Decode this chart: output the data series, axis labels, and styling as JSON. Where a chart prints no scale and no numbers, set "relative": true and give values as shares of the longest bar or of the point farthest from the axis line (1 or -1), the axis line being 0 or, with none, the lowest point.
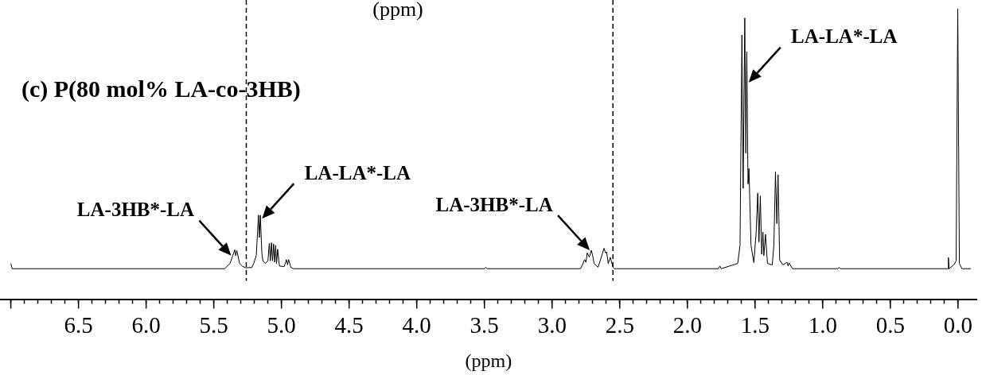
{
  "chart_data": {
    "type": "line",
    "relative": true,
    "title": "(c) P(80 mol% LA-co-3HB)",
    "xlabel": "(ppm)",
    "xlim": [
      7.08,
      -0.14
    ],
    "xticks": [
      {
        "value": 7.0,
        "label": null
      },
      {
        "value": 6.9,
        "label": null
      },
      {
        "value": 6.8,
        "label": null
      },
      {
        "value": 6.7,
        "label": null
      },
      {
        "value": 6.6,
        "label": null
      },
      6.5,
      {
        "value": 6.4,
        "label": null
      },
      {
        "value": 6.3,
        "label": null
      },
      {
        "value": 6.2,
        "label": null
      },
      {
        "value": 6.1,
        "label": null
      },
      {
        "value": 6,
        "label": "6.0"
      },
      {
        "value": 5.9,
        "label": null
      },
      {
        "value": 5.8,
        "label": null
      },
      {
        "value": 5.7,
        "label": null
      },
      {
        "value": 5.6,
        "label": null
      },
      5.5,
      {
        "value": 5.4,
        "label": null
      },
      {
        "value": 5.3,
        "label": null
      },
      {
        "value": 5.2,
        "label": null
      },
      {
        "value": 5.1,
        "label": null
      },
      {
        "value": 5,
        "label": "5.0"
      },
      {
        "value": 4.9,
        "label": null
      },
      {
        "value": 4.8,
        "label": null
      },
      {
        "value": 4.7,
        "label": null
      },
      {
        "value": 4.6,
        "label": null
      },
      4.5,
      {
        "value": 4.4,
        "label": null
      },
      {
        "value": 4.3,
        "label": null
      },
      {
        "value": 4.2,
        "label": null
      },
      {
        "value": 4.1,
        "label": null
      },
      {
        "value": 4,
        "label": "4.0"
      },
      {
        "value": 3.9,
        "label": null
      },
      {
        "value": 3.8,
        "label": null
      },
      {
        "value": 3.7,
        "label": null
      },
      {
        "value": 3.6,
        "label": null
      },
      3.5,
      {
        "value": 3.4,
        "label": null
      },
      {
        "value": 3.3,
        "label": null
      },
      {
        "value": 3.2,
        "label": null
      },
      {
        "value": 3.1,
        "label": null
      },
      {
        "value": 3,
        "label": "3.0"
      },
      {
        "value": 2.9,
        "label": null
      },
      {
        "value": 2.8,
        "label": null
      },
      {
        "value": 2.7,
        "label": null
      },
      {
        "value": 2.6,
        "label": null
      },
      2.5,
      {
        "value": 2.4,
        "label": null
      },
      {
        "value": 2.3,
        "label": null
      },
      {
        "value": 2.2,
        "label": null
      },
      {
        "value": 2.1,
        "label": null
      },
      {
        "value": 2,
        "label": "2.0"
      },
      {
        "value": 1.9,
        "label": null
      },
      {
        "value": 1.8,
        "label": null
      },
      {
        "value": 1.7,
        "label": null
      },
      {
        "value": 1.6,
        "label": null
      },
      1.5,
      {
        "value": 1.4,
        "label": null
      },
      {
        "value": 1.3,
        "label": null
      },
      {
        "value": 1.2,
        "label": null
      },
      {
        "value": 1.1,
        "label": null
      },
      {
        "value": 1,
        "label": "1.0"
      },
      {
        "value": 0.9,
        "label": null
      },
      {
        "value": 0.8,
        "label": null
      },
      {
        "value": 0.7,
        "label": null
      },
      {
        "value": 0.6,
        "label": null
      },
      0.5,
      {
        "value": 0.4,
        "label": null
      },
      {
        "value": 0.3,
        "label": null
      },
      {
        "value": 0.2,
        "label": null
      },
      {
        "value": 0.1,
        "label": null
      },
      {
        "value": 0,
        "label": "0.0"
      }
    ],
    "grid": false,
    "legend": false,
    "marker": "none",
    "line_style": "solid",
    "series": [
      {
        "color": "#000000",
        "x": [
          7.0,
          6.99,
          5.42,
          5.38,
          5.36,
          5.345,
          5.338,
          5.33,
          5.31,
          5.29,
          5.265,
          5.22,
          5.205,
          5.186,
          5.17,
          5.163,
          5.156,
          5.145,
          5.137,
          5.12,
          5.1,
          5.09,
          5.082,
          5.074,
          5.066,
          5.058,
          5.05,
          5.043,
          5.036,
          5.028,
          5.015,
          4.98,
          4.963,
          4.955,
          4.947,
          4.93,
          4.91,
          3.5,
          3.49,
          3.48,
          2.79,
          2.78,
          2.76,
          2.75,
          2.74,
          2.725,
          2.71,
          2.7,
          2.69,
          2.66,
          2.616,
          2.605,
          2.597,
          2.585,
          2.57,
          2.55,
          2.54,
          1.77,
          1.76,
          1.75,
          1.628,
          1.611,
          1.597,
          1.588,
          1.576,
          1.568,
          1.561,
          1.552,
          1.545,
          1.53,
          1.509,
          1.492,
          1.48,
          1.471,
          1.461,
          1.451,
          1.442,
          1.435,
          1.423,
          1.408,
          1.373,
          1.361,
          1.349,
          1.339,
          1.33,
          1.318,
          1.294,
          1.263,
          1.256,
          1.249,
          1.223,
          0.89,
          0.878,
          0.87,
          0.075,
          0.071,
          0.066,
          0.031,
          0.014,
          0.002,
          -0.01,
          -0.029,
          -0.095
        ],
        "values": [
          0.125,
          0.107,
          0.107,
          0.125,
          0.152,
          0.172,
          0.152,
          0.17,
          0.125,
          0.116,
          0.11,
          0.111,
          0.125,
          0.152,
          0.291,
          0.214,
          0.291,
          0.161,
          0.134,
          0.125,
          0.134,
          0.194,
          0.134,
          0.196,
          0.134,
          0.192,
          0.129,
          0.187,
          0.125,
          0.174,
          0.116,
          0.114,
          0.138,
          0.12,
          0.138,
          0.111,
          0.107,
          0.107,
          0.111,
          0.107,
          0.107,
          0.116,
          0.138,
          0.129,
          0.161,
          0.147,
          0.17,
          0.152,
          0.125,
          0.112,
          0.177,
          0.161,
          0.165,
          0.125,
          0.146,
          0.112,
          0.107,
          0.107,
          0.116,
          0.107,
          0.125,
          0.188,
          0.91,
          0.383,
          0.968,
          0.504,
          0.852,
          0.398,
          0.451,
          0.188,
          0.128,
          0.231,
          0.367,
          0.199,
          0.357,
          0.157,
          0.233,
          0.152,
          0.225,
          0.125,
          0.12,
          0.187,
          0.44,
          0.262,
          0.43,
          0.136,
          0.12,
          0.129,
          0.116,
          0.127,
          0.107,
          0.107,
          0.111,
          0.107,
          0.107,
          0.145,
          0.107,
          0.12,
          0.134,
          1,
          0.125,
          0.107,
          0.107
        ]
      }
    ],
    "ref_lines": [
      {
        "axis": "x",
        "value": 5.26,
        "label": null,
        "color": "#000000",
        "line_style": "dashed"
      },
      {
        "axis": "x",
        "value": 2.55,
        "label": null,
        "color": "#000000",
        "line_style": "dashed"
      }
    ],
    "annotations": [
      "(ppm)",
      {
        "text": "LA-3HB*-LA",
        "x": 5.36,
        "y": 0.152
      },
      {
        "text": "LA-LA*-LA",
        "x": 5.155,
        "y": 0.279
      },
      {
        "text": "LA-3HB*-LA",
        "x": 2.71,
        "y": 0.17
      },
      {
        "text": "LA-LA*-LA",
        "x": 1.559,
        "y": 0.747
      }
    ]
  }
}
